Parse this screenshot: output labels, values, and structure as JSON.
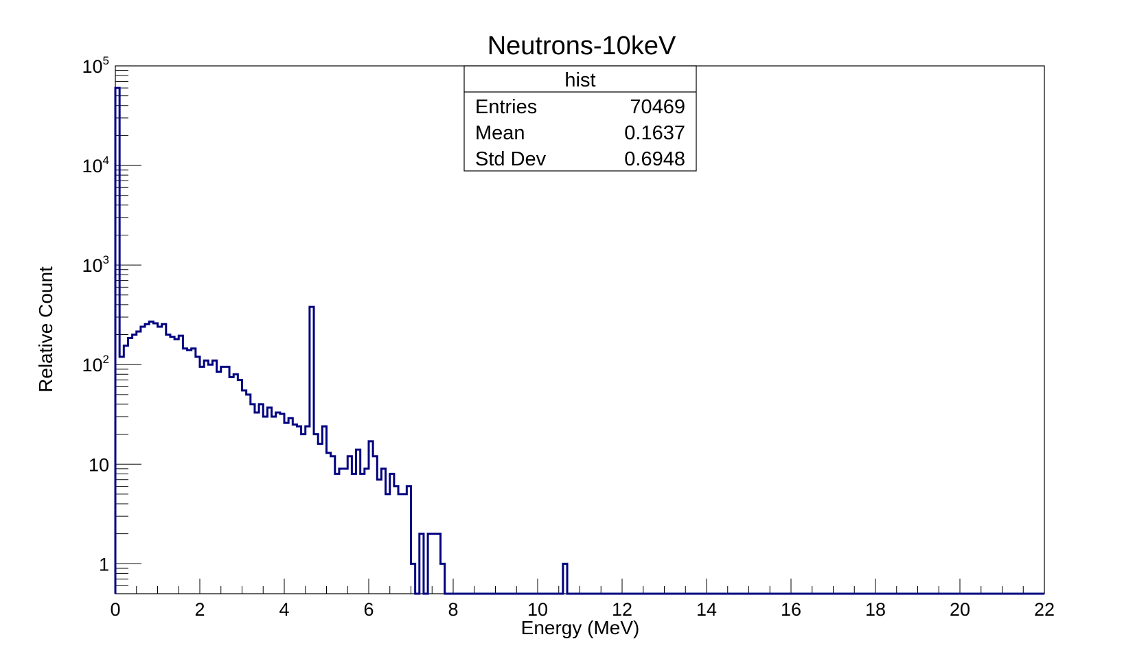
{
  "chart_data": {
    "type": "histogram",
    "title": "Neutrons-10keV",
    "xlabel": "Energy (MeV)",
    "ylabel": "Relative Count",
    "y_scale": "log",
    "xlim": [
      0,
      22
    ],
    "ylim": [
      0.5,
      100000
    ],
    "x_ticks": [
      0,
      2,
      4,
      6,
      8,
      10,
      12,
      14,
      16,
      18,
      20,
      22
    ],
    "x_tick_labels": [
      "0",
      "2",
      "4",
      "6",
      "8",
      "10",
      "12",
      "14",
      "16",
      "18",
      "20",
      "22"
    ],
    "y_tick_labels": [
      {
        "value": 1,
        "base": "1",
        "exp": ""
      },
      {
        "value": 10,
        "base": "10",
        "exp": ""
      },
      {
        "value": 100,
        "base": "10",
        "exp": "2"
      },
      {
        "value": 1000,
        "base": "10",
        "exp": "3"
      },
      {
        "value": 10000,
        "base": "10",
        "exp": "4"
      },
      {
        "value": 100000,
        "base": "10",
        "exp": "5"
      }
    ],
    "bin_width": 0.1,
    "counts": [
      60000,
      120,
      155,
      185,
      200,
      215,
      240,
      255,
      270,
      260,
      240,
      255,
      200,
      190,
      180,
      195,
      145,
      140,
      145,
      120,
      95,
      110,
      100,
      110,
      85,
      95,
      95,
      75,
      80,
      70,
      55,
      50,
      40,
      33,
      40,
      30,
      37,
      30,
      33,
      32,
      26,
      29,
      25,
      24,
      20,
      24,
      380,
      20,
      16,
      24,
      13,
      12,
      8,
      9,
      9,
      12,
      8,
      14,
      8,
      9,
      17,
      12,
      7,
      9,
      5,
      8,
      6,
      5,
      5,
      6,
      1,
      0,
      2,
      0,
      2,
      2,
      2,
      1,
      0,
      0,
      0,
      0,
      0,
      0,
      0,
      0,
      0,
      0,
      0,
      0,
      0,
      0,
      0,
      0,
      0,
      0,
      0,
      0,
      0,
      0,
      0,
      0,
      0,
      0,
      0,
      0,
      1
    ],
    "legend": "none",
    "grid": false,
    "line_color": "#000080",
    "stats_box": {
      "name": "hist",
      "rows": [
        {
          "label": "Entries",
          "value": "70469"
        },
        {
          "label": "Mean",
          "value": "0.1637"
        },
        {
          "label": "Std Dev",
          "value": "0.6948"
        }
      ]
    }
  }
}
